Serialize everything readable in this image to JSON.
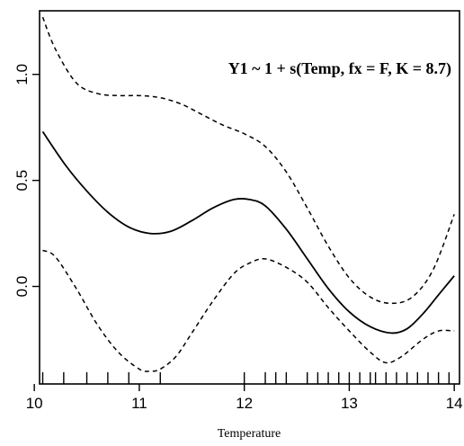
{
  "chart_data": {
    "type": "line",
    "title": "",
    "xlabel": "Temperature",
    "ylabel": "",
    "annotation": "Y1 ~ 1 + s(Temp, fx = F, K = 8.7)",
    "xlim": [
      10.05,
      14.05
    ],
    "ylim": [
      -0.46,
      1.3
    ],
    "x_ticks": [
      10,
      11,
      12,
      13,
      14
    ],
    "x_tick_labels": [
      "10",
      "11",
      "12",
      "13",
      "14"
    ],
    "y_ticks": [
      0.0,
      0.5,
      1.0
    ],
    "y_tick_labels": [
      "0.0",
      "0.5",
      "1.0"
    ],
    "grid": false,
    "series": [
      {
        "style": "solid",
        "x": [
          10.08,
          10.3,
          10.5,
          10.7,
          10.9,
          11.1,
          11.3,
          11.5,
          11.7,
          11.9,
          12.05,
          12.2,
          12.4,
          12.6,
          12.8,
          13.0,
          13.2,
          13.4,
          13.55,
          13.7,
          13.85,
          14.0
        ],
        "y": [
          0.73,
          0.57,
          0.45,
          0.35,
          0.28,
          0.25,
          0.26,
          0.31,
          0.37,
          0.41,
          0.41,
          0.38,
          0.27,
          0.13,
          -0.01,
          -0.12,
          -0.19,
          -0.22,
          -0.2,
          -0.13,
          -0.04,
          0.05
        ]
      },
      {
        "style": "dashed",
        "x": [
          10.08,
          10.2,
          10.4,
          10.6,
          10.8,
          11.0,
          11.2,
          11.4,
          11.6,
          11.8,
          12.0,
          12.2,
          12.4,
          12.6,
          12.8,
          13.0,
          13.2,
          13.4,
          13.6,
          13.8,
          14.0
        ],
        "y": [
          1.27,
          1.12,
          0.96,
          0.91,
          0.9,
          0.9,
          0.89,
          0.86,
          0.81,
          0.76,
          0.72,
          0.66,
          0.54,
          0.37,
          0.19,
          0.04,
          -0.05,
          -0.08,
          -0.05,
          0.08,
          0.34
        ]
      },
      {
        "style": "dashed",
        "x": [
          10.08,
          10.2,
          10.4,
          10.6,
          10.8,
          11.0,
          11.1,
          11.2,
          11.35,
          11.5,
          11.7,
          11.9,
          12.05,
          12.2,
          12.4,
          12.6,
          12.8,
          13.0,
          13.2,
          13.35,
          13.5,
          13.7,
          13.85,
          14.0
        ],
        "y": [
          0.17,
          0.14,
          -0.01,
          -0.18,
          -0.31,
          -0.39,
          -0.4,
          -0.39,
          -0.33,
          -0.22,
          -0.07,
          0.06,
          0.11,
          0.13,
          0.09,
          0.02,
          -0.1,
          -0.21,
          -0.31,
          -0.36,
          -0.33,
          -0.25,
          -0.21,
          -0.21
        ]
      }
    ],
    "rug": [
      10.08,
      10.28,
      10.5,
      10.7,
      10.9,
      11.2,
      12.0,
      12.2,
      12.3,
      12.4,
      12.6,
      12.7,
      12.8,
      12.9,
      13.0,
      13.1,
      13.2,
      13.25,
      13.35,
      13.45,
      13.55,
      13.65,
      13.75,
      13.85,
      13.95
    ]
  }
}
